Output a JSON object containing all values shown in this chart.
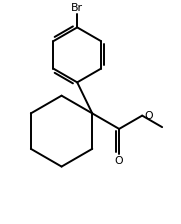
{
  "background": "#ffffff",
  "line_color": "#000000",
  "line_width": 1.4,
  "text_color": "#000000",
  "Br_label": "Br",
  "O_carbonyl": "O",
  "O_ether": "O",
  "figsize": [
    1.81,
    2.24
  ],
  "dpi": 100,
  "xlim": [
    0,
    10
  ],
  "ylim": [
    0,
    12.4
  ]
}
